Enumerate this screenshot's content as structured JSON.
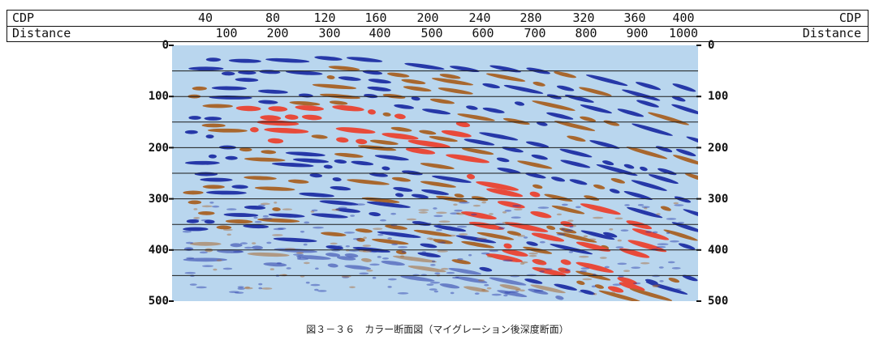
{
  "header": {
    "cdp_label": "CDP",
    "distance_label": "Distance",
    "cdp_ticks": [
      "40",
      "80",
      "120",
      "160",
      "200",
      "240",
      "280",
      "320",
      "360",
      "400"
    ],
    "distance_ticks": [
      "100",
      "200",
      "300",
      "400",
      "500",
      "600",
      "700",
      "800",
      "900",
      "1000"
    ]
  },
  "chart_data": {
    "type": "heatmap",
    "x_axis_top": {
      "name": "CDP",
      "ticks": [
        40,
        80,
        120,
        160,
        200,
        240,
        280,
        320,
        360,
        400
      ]
    },
    "x_axis_bottom": {
      "name": "Distance",
      "ticks": [
        100,
        200,
        300,
        400,
        500,
        600,
        700,
        800,
        900,
        1000
      ]
    },
    "y_axis": {
      "ticks": [
        "0",
        "100",
        "200",
        "300",
        "400",
        "500"
      ],
      "range": [
        0,
        500
      ],
      "inverted": true
    },
    "grid_lines_y": [
      50,
      100,
      150,
      200,
      250,
      300,
      350,
      400,
      450
    ],
    "colors": {
      "background": "#b9d6ee",
      "positive": "#e84a3a",
      "negative": "#2638a8",
      "secondary": "#a8672e"
    }
  },
  "caption": "図３－３６　カラー断面図（マイグレーション後深度断面）"
}
